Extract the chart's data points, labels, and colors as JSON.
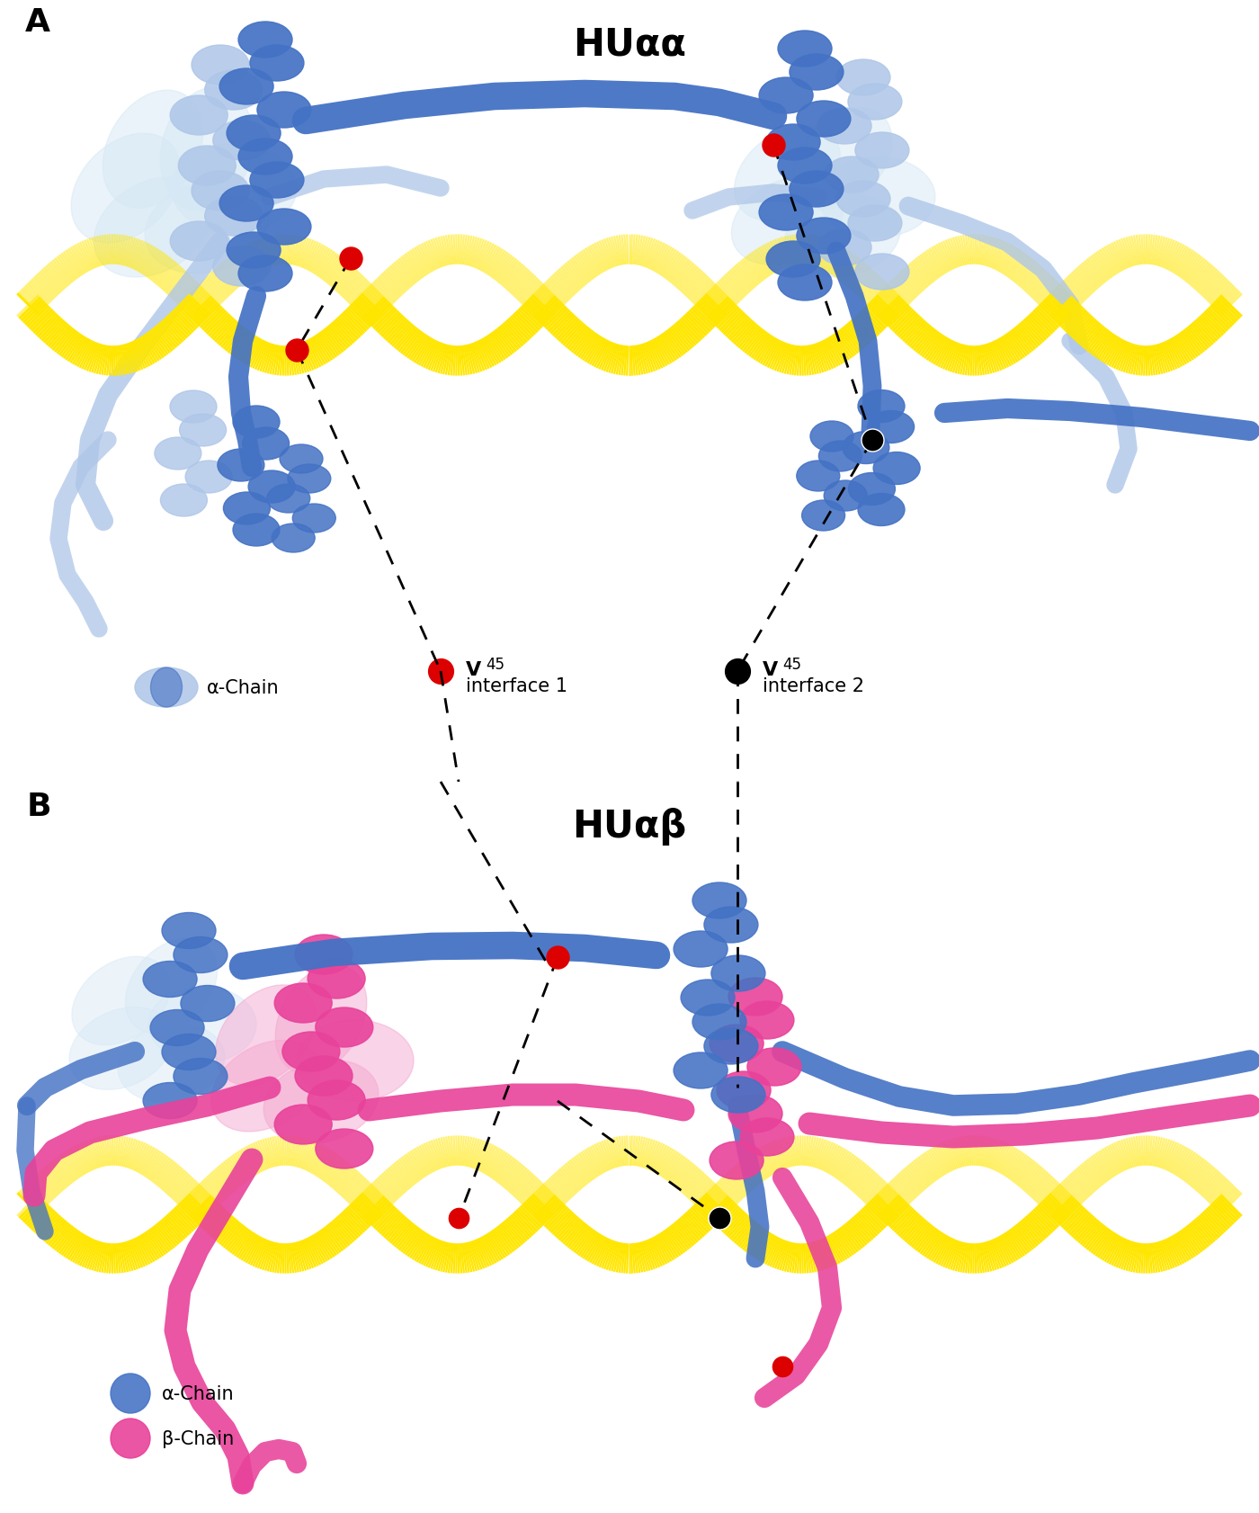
{
  "fig_width": 14.0,
  "fig_height": 16.83,
  "dpi": 100,
  "bg_color": "#ffffff",
  "panel_A_label": "A",
  "panel_B_label": "B",
  "title_A": "HUαα",
  "title_B": "HUαβ",
  "label_alpha_chain_A": "α-Chain",
  "label_alpha_chain_B": "α-Chain",
  "label_beta_chain_B": "β-Chain",
  "color_dna": "#FFE600",
  "color_dna_edge": "#D4C000",
  "color_alpha_dark": "#4472C4",
  "color_alpha_light": "#AEC6E8",
  "color_alpha_vlight": "#D6E8F5",
  "color_beta_dark": "#E8429A",
  "color_beta_light": "#F5A8D0",
  "color_red_dot": "#DD0000",
  "color_black_dot": "#111111",
  "color_white": "#ffffff",
  "v45_label_1_line1": "V",
  "v45_label_1_sup": "45",
  "v45_label_1_line2": "interface 1",
  "v45_label_2_line1": "V",
  "v45_label_2_sup": "45",
  "v45_label_2_line2": "interface 2",
  "font_size_title": 30,
  "font_size_panel": 26,
  "font_size_legend": 15,
  "font_size_v45": 16,
  "font_size_v45_sup": 12,
  "font_size_interface": 15
}
